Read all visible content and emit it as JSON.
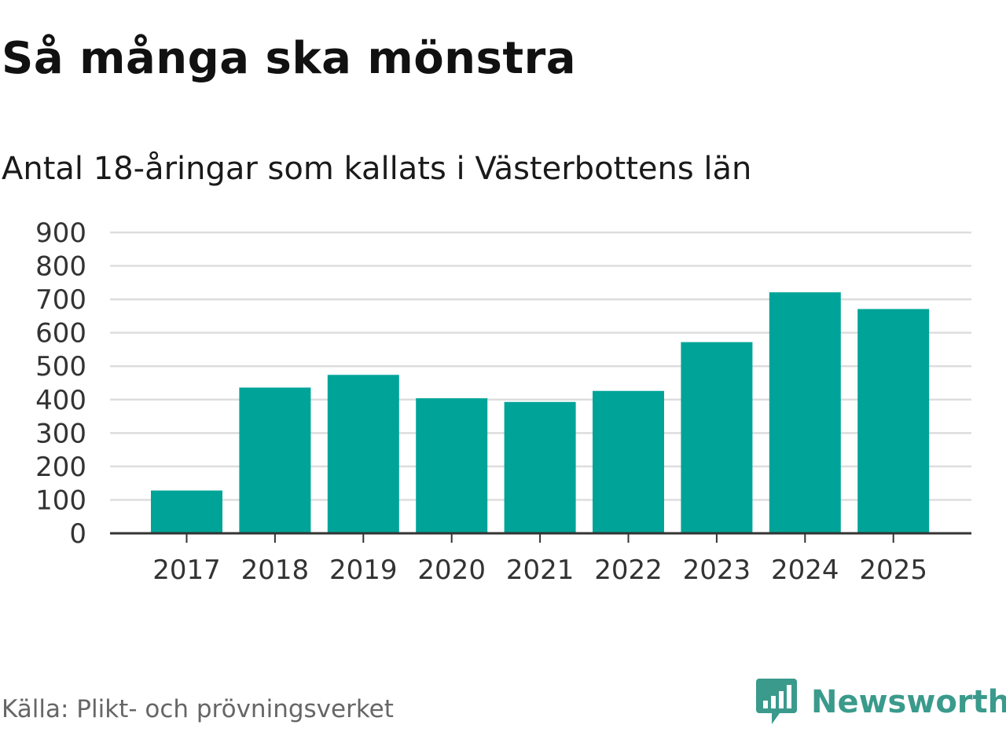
{
  "title": "Så många ska mönstra",
  "subtitle": "Antal 18-åringar som kallats i Västerbottens län",
  "source": "Källa: Plikt- och prövningsverket",
  "brand": {
    "name": "Newsworthy",
    "color": "#3a9a8c",
    "icon": "newsworthy-chart-bubble-icon"
  },
  "chart_data": {
    "type": "bar",
    "categories": [
      "2017",
      "2018",
      "2019",
      "2020",
      "2021",
      "2022",
      "2023",
      "2024",
      "2025"
    ],
    "values": [
      128,
      436,
      474,
      404,
      393,
      426,
      572,
      721,
      671
    ],
    "ylim": [
      0,
      900
    ],
    "yticks": [
      0,
      100,
      200,
      300,
      400,
      500,
      600,
      700,
      800,
      900
    ],
    "grid": true,
    "bar_color": "#00a398",
    "xlabel": "",
    "ylabel": ""
  }
}
